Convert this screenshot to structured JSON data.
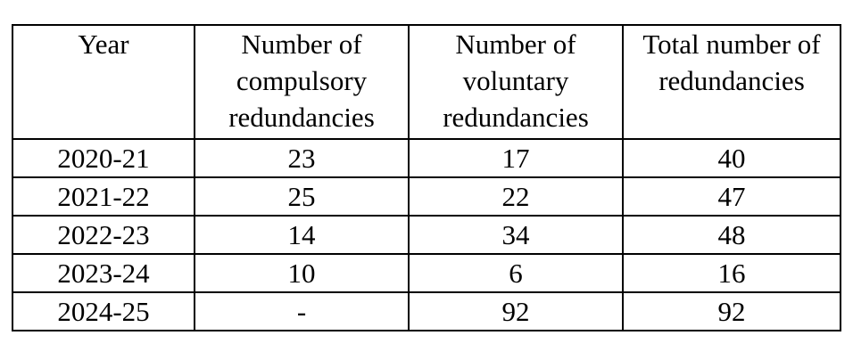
{
  "table": {
    "header": [
      "Year",
      "Number of compulsory redundancies",
      "Number of voluntary redundancies",
      "Total number of redundancies"
    ],
    "rows": [
      [
        "2020-21",
        23,
        17,
        40
      ],
      [
        "2021-22",
        25,
        22,
        47
      ],
      [
        "2022-23",
        14,
        34,
        48
      ],
      [
        "2023-24",
        10,
        6,
        16
      ],
      [
        "2024-25",
        "-",
        92,
        92
      ]
    ]
  }
}
